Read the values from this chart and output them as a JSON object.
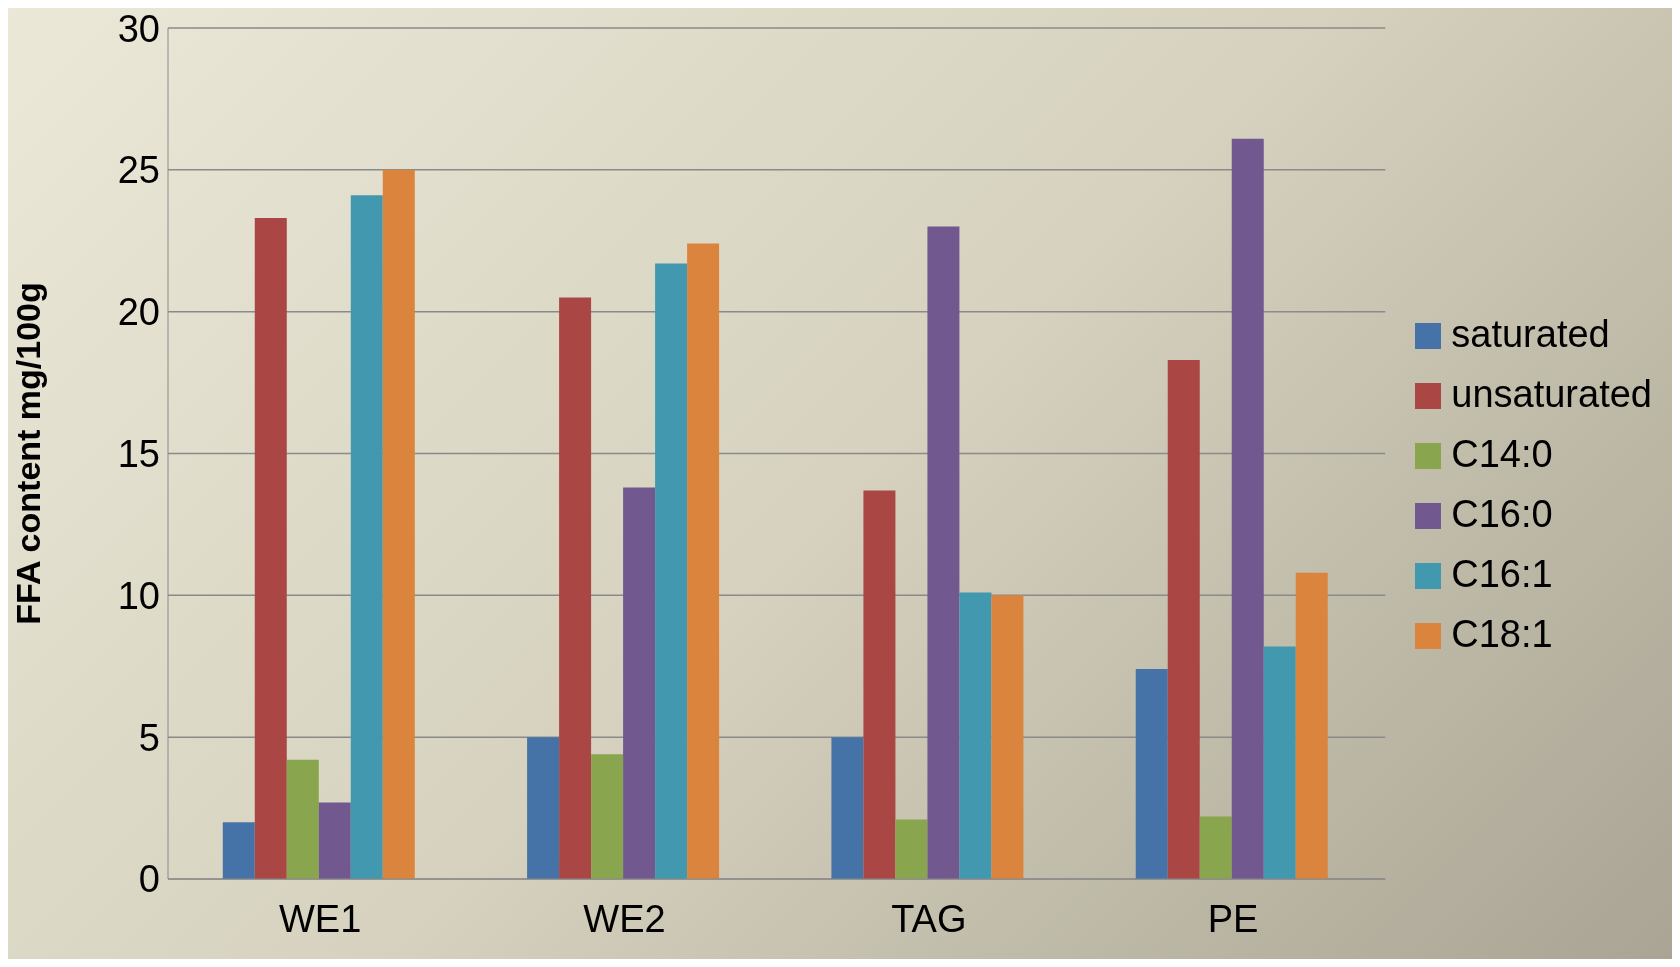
{
  "chart_data": {
    "type": "bar",
    "ylabel": "FFA content mg/100g",
    "categories": [
      "WE1",
      "WE2",
      "TAG",
      "PE"
    ],
    "series": [
      {
        "name": "saturated",
        "color": "#4573a7",
        "values": [
          2.0,
          5.0,
          5.0,
          7.4
        ]
      },
      {
        "name": "unsaturated",
        "color": "#aa4643",
        "values": [
          23.3,
          20.5,
          13.7,
          18.3
        ]
      },
      {
        "name": "C14:0",
        "color": "#89a54e",
        "values": [
          4.2,
          4.4,
          2.1,
          2.2
        ]
      },
      {
        "name": "C16:0",
        "color": "#71588f",
        "values": [
          2.7,
          13.8,
          23.0,
          26.1
        ]
      },
      {
        "name": "C16:1",
        "color": "#4198af",
        "values": [
          24.1,
          21.7,
          10.1,
          8.2
        ]
      },
      {
        "name": "C18:1",
        "color": "#db843d",
        "values": [
          25.0,
          22.4,
          10.0,
          10.8
        ]
      }
    ],
    "ylim": [
      0,
      30
    ],
    "yticks": [
      0,
      5,
      10,
      15,
      20,
      25,
      30
    ],
    "grid": "y",
    "legend": "right"
  }
}
